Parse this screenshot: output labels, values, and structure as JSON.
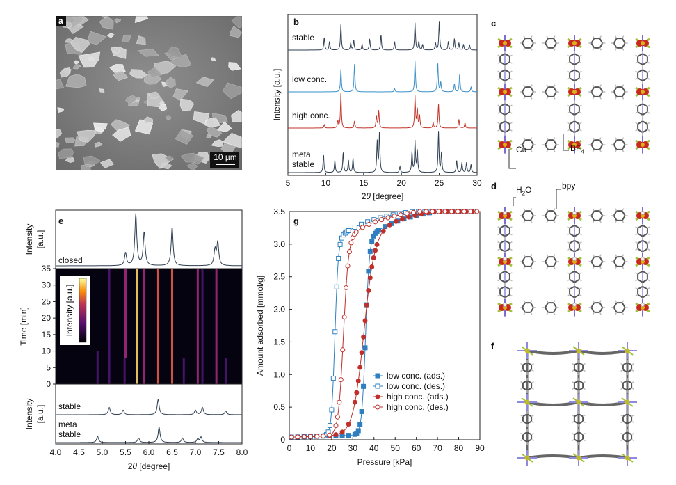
{
  "panels": {
    "a": {
      "label": "a",
      "scale_bar": "10 µm"
    },
    "b": {
      "label": "b"
    },
    "c": {
      "label": "c",
      "annotations": {
        "cu": "Cu",
        "bf4": "BF",
        "bf4_sub": "4"
      }
    },
    "d": {
      "label": "d",
      "annotations": {
        "h2o_h": "H",
        "h2o_sub": "2",
        "h2o_o": "O",
        "bpy": "bpy"
      }
    },
    "e": {
      "label": "e",
      "colorbar_label": "Intensity [a.u.]"
    },
    "f": {
      "label": "f"
    },
    "g": {
      "label": "g"
    }
  },
  "chart_data": [
    {
      "id": "b",
      "type": "line",
      "xlabel_prefix": "2",
      "xlabel_theta": "θ",
      "xlabel_suffix": " [degree]",
      "ylabel": "Intensity [a.u.]",
      "xlim": [
        5,
        30
      ],
      "xticks": [
        "5",
        "10",
        "15",
        "20",
        "25",
        "30"
      ],
      "series": [
        {
          "name": "stable",
          "color": "#2f3f52",
          "peaks": [
            [
              9.8,
              0.45
            ],
            [
              10.5,
              0.3
            ],
            [
              12.0,
              0.9
            ],
            [
              13.3,
              0.25
            ],
            [
              13.7,
              0.35
            ],
            [
              14.8,
              0.2
            ],
            [
              15.8,
              0.4
            ],
            [
              17.3,
              0.55
            ],
            [
              19.1,
              0.3
            ],
            [
              21.8,
              0.95
            ],
            [
              22.3,
              0.3
            ],
            [
              22.8,
              0.2
            ],
            [
              24.5,
              0.25
            ],
            [
              25.0,
              1.0
            ],
            [
              26.2,
              0.3
            ],
            [
              27.0,
              0.4
            ],
            [
              27.6,
              0.25
            ],
            [
              28.2,
              0.2
            ],
            [
              29.0,
              0.2
            ]
          ]
        },
        {
          "name": "low conc.",
          "color": "#3a8fca",
          "peaks": [
            [
              12.0,
              0.7
            ],
            [
              13.8,
              0.85
            ],
            [
              19.1,
              0.1
            ],
            [
              21.8,
              0.95
            ],
            [
              24.8,
              0.9
            ],
            [
              25.2,
              0.3
            ],
            [
              27.0,
              0.25
            ],
            [
              27.7,
              0.55
            ],
            [
              29.2,
              0.15
            ]
          ]
        },
        {
          "name": "high conc.",
          "color": "#c2352b",
          "peaks": [
            [
              9.8,
              0.1
            ],
            [
              11.6,
              0.2
            ],
            [
              12.0,
              1.0
            ],
            [
              13.8,
              0.2
            ],
            [
              16.7,
              0.35
            ],
            [
              17.0,
              0.5
            ],
            [
              21.8,
              0.9
            ],
            [
              22.1,
              0.55
            ],
            [
              22.4,
              0.35
            ],
            [
              24.2,
              0.15
            ],
            [
              24.9,
              0.7
            ],
            [
              27.6,
              0.25
            ],
            [
              28.4,
              0.15
            ]
          ]
        },
        {
          "name": "meta\nstable",
          "color": "#2f3f52",
          "peaks": [
            [
              9.7,
              0.45
            ],
            [
              11.2,
              0.3
            ],
            [
              12.3,
              0.5
            ],
            [
              13.0,
              0.3
            ],
            [
              13.6,
              0.35
            ],
            [
              16.8,
              0.75
            ],
            [
              17.1,
              1.0
            ],
            [
              19.8,
              0.15
            ],
            [
              21.4,
              0.5
            ],
            [
              21.8,
              0.75
            ],
            [
              22.1,
              0.55
            ],
            [
              24.9,
              1.0
            ],
            [
              25.3,
              0.5
            ],
            [
              27.3,
              0.3
            ],
            [
              28.0,
              0.25
            ],
            [
              28.6,
              0.25
            ],
            [
              29.2,
              0.2
            ]
          ]
        }
      ]
    },
    {
      "id": "e",
      "type": "heatmap",
      "xlabel_prefix": "2",
      "xlabel_theta": "θ",
      "xlabel_suffix": " [degree]",
      "xlim": [
        4.0,
        8.0
      ],
      "xticks": [
        "4.0",
        "4.5",
        "5.0",
        "5.5",
        "6.0",
        "6.5",
        "7.0",
        "7.5",
        "8.0"
      ],
      "top_ylabel_1": "Intensity",
      "top_ylabel_2": "[a.u.]",
      "top_series": {
        "name": "closed",
        "peaks": [
          [
            5.5,
            0.25
          ],
          [
            5.72,
            1.0
          ],
          [
            5.9,
            0.65
          ],
          [
            6.5,
            0.75
          ],
          [
            7.42,
            0.3
          ],
          [
            7.48,
            0.45
          ]
        ]
      },
      "heatmap_ylabel": "Time [min]",
      "ylim": [
        0,
        35
      ],
      "yticks": [
        "0",
        "5",
        "10",
        "15",
        "20",
        "25",
        "30",
        "35"
      ],
      "heatmap_lines": [
        {
          "x": 4.9,
          "t_start": 0,
          "t_end": 10,
          "strength": 0.35
        },
        {
          "x": 5.15,
          "t_start": 0,
          "t_end": 35,
          "strength": 0.3
        },
        {
          "x": 5.48,
          "t_start": 0,
          "t_end": 8,
          "strength": 0.3
        },
        {
          "x": 5.5,
          "t_start": 8,
          "t_end": 35,
          "strength": 0.45
        },
        {
          "x": 5.75,
          "t_start": 0,
          "t_end": 35,
          "strength": 1.0
        },
        {
          "x": 5.9,
          "t_start": 0,
          "t_end": 35,
          "strength": 0.65
        },
        {
          "x": 6.2,
          "t_start": 0,
          "t_end": 35,
          "strength": 0.8
        },
        {
          "x": 6.5,
          "t_start": 0,
          "t_end": 35,
          "strength": 0.85
        },
        {
          "x": 6.75,
          "t_start": 0,
          "t_end": 8,
          "strength": 0.25
        },
        {
          "x": 7.05,
          "t_start": 0,
          "t_end": 35,
          "strength": 0.45
        },
        {
          "x": 7.15,
          "t_start": 0,
          "t_end": 35,
          "strength": 0.4
        },
        {
          "x": 7.45,
          "t_start": 0,
          "t_end": 35,
          "strength": 0.55
        },
        {
          "x": 7.65,
          "t_start": 0,
          "t_end": 8,
          "strength": 0.2
        }
      ],
      "bottom_ylabel_1": "Intensity",
      "bottom_ylabel_2": "[a.u.]",
      "bottom_series": [
        {
          "name": "stable",
          "peaks": [
            [
              5.15,
              0.4
            ],
            [
              5.45,
              0.25
            ],
            [
              6.2,
              0.85
            ],
            [
              7.0,
              0.25
            ],
            [
              7.15,
              0.4
            ],
            [
              7.65,
              0.2
            ]
          ]
        },
        {
          "name": "meta\nstable",
          "peaks": [
            [
              4.9,
              0.35
            ],
            [
              5.78,
              0.25
            ],
            [
              6.22,
              0.85
            ],
            [
              6.72,
              0.25
            ],
            [
              7.05,
              0.2
            ],
            [
              7.12,
              0.3
            ]
          ]
        }
      ]
    },
    {
      "id": "g",
      "type": "scatter",
      "xlabel": "Pressure [kPa]",
      "ylabel": "Amount adsorbed [mmol/g]",
      "xlim": [
        0,
        90
      ],
      "ylim": [
        0,
        3.5
      ],
      "xticks": [
        "0",
        "10",
        "20",
        "30",
        "40",
        "50",
        "60",
        "70",
        "80",
        "90"
      ],
      "yticks": [
        "0",
        "0.5",
        "1.0",
        "1.5",
        "2.0",
        "2.5",
        "3.0",
        "3.5"
      ],
      "legend_position": "bottom-right",
      "series": [
        {
          "name": "low conc. (ads.)",
          "color": "#2f7fc0",
          "marker": "square",
          "filled": true,
          "p_half": 36.0,
          "width": 0.9,
          "q_max": 3.5,
          "q_step": 3.0
        },
        {
          "name": "low conc. (des.)",
          "color": "#2f7fc0",
          "marker": "square",
          "filled": false,
          "p_half": 21.5,
          "width": 0.8,
          "q_max": 3.5,
          "q_step": 3.0
        },
        {
          "name": "high conc. (ads.)",
          "color": "#c0302a",
          "marker": "circle",
          "filled": true,
          "p_half": 35.0,
          "width": 2.5,
          "q_max": 3.5,
          "q_step": 3.0
        },
        {
          "name": "high conc. (des.)",
          "color": "#c0302a",
          "marker": "circle",
          "filled": false,
          "p_half": 25.5,
          "width": 1.2,
          "q_max": 3.5,
          "q_step": 3.0
        }
      ]
    }
  ]
}
